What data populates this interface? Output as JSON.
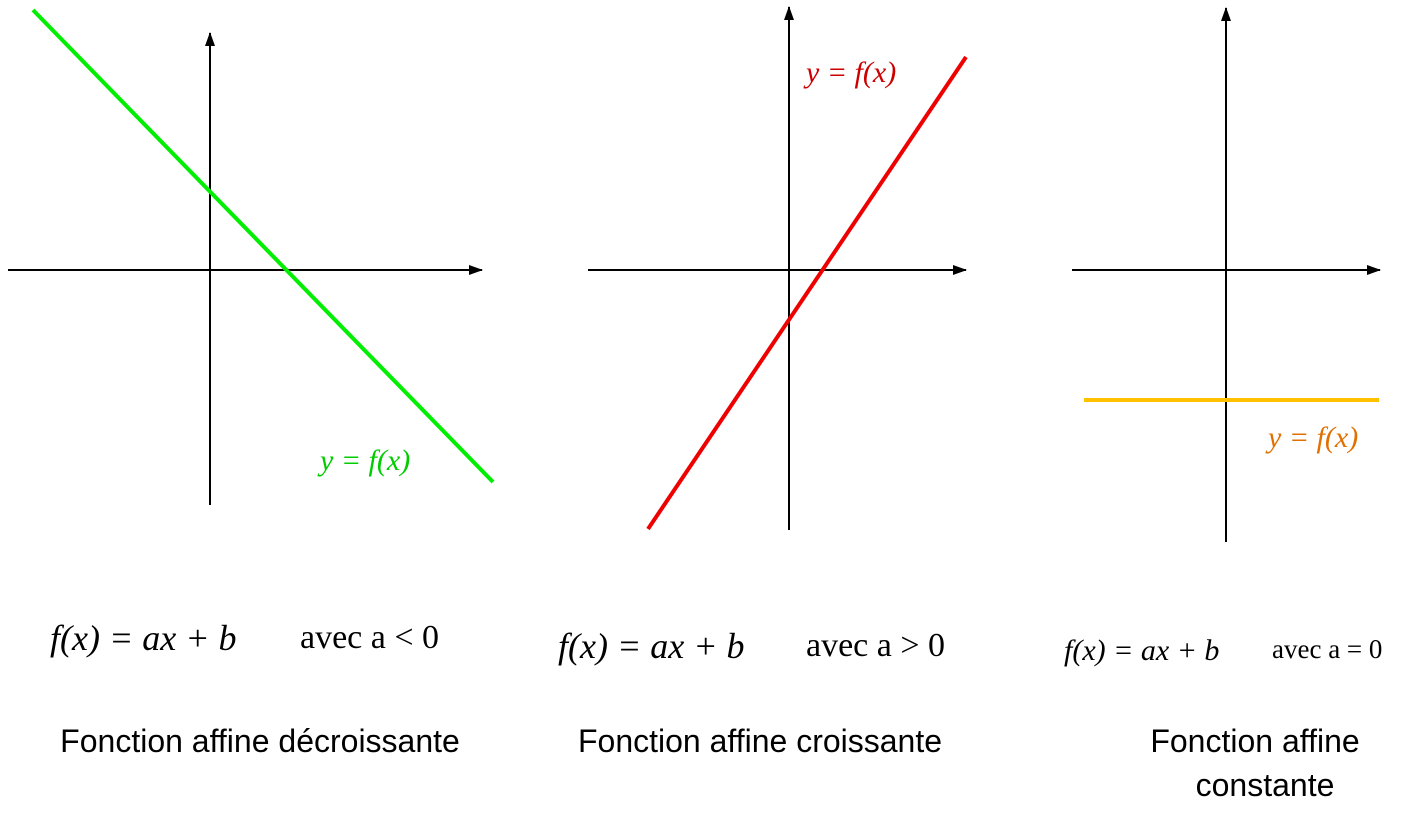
{
  "panels": [
    {
      "line_label": "y = f(x)",
      "formula": "f(x) = ax + b",
      "condition": "avec a < 0",
      "caption": [
        "Fonction affine décroissante"
      ]
    },
    {
      "line_label": "y = f(x)",
      "formula": "f(x) = ax + b",
      "condition": "avec a > 0",
      "caption": [
        "Fonction affine croissante"
      ]
    },
    {
      "line_label": "y = f(x)",
      "formula": "f(x) = ax + b",
      "condition": "avec a = 0",
      "caption": [
        "Fonction affine",
        "constante"
      ]
    }
  ]
}
